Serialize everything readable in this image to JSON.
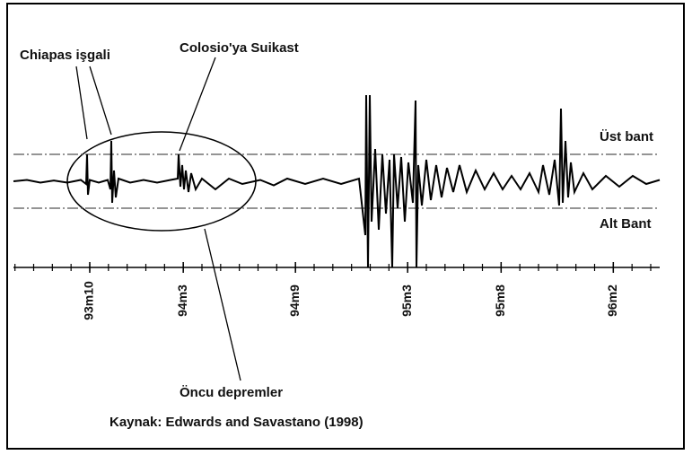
{
  "chart_data": {
    "type": "line",
    "annotations": [
      "Chiapas işgali",
      "Colosio'ya Suikast",
      "Öncu depremler"
    ],
    "source": "Kaynak: Edwards and Savastano (1998)",
    "bands": [
      {
        "label": "Üst bant",
        "value": 1
      },
      {
        "label": "Alt Bant",
        "value": -1
      }
    ],
    "color": "#000000",
    "xlim": [
      93.37,
      96.29
    ],
    "ylim": [
      -3.2,
      3.2
    ],
    "xticks": [
      {
        "value": 93.75,
        "label": "93m10"
      },
      {
        "value": 94.1667,
        "label": "94m3"
      },
      {
        "value": 94.6667,
        "label": "94m9"
      },
      {
        "value": 95.1667,
        "label": "95m3"
      },
      {
        "value": 95.5833,
        "label": "95m8"
      },
      {
        "value": 96.0833,
        "label": "96m2"
      }
    ],
    "xminorticks": [
      93.4167,
      93.5,
      93.5833,
      93.6667,
      93.75,
      93.8333,
      93.9167,
      94,
      94.0833,
      94.1667,
      94.25,
      94.3333,
      94.4167,
      94.5,
      94.5833,
      94.6667,
      94.75,
      94.8333,
      94.9167,
      95,
      95.0833,
      95.1667,
      95.25,
      95.3333,
      95.4167,
      95.5,
      95.5833,
      95.6667,
      95.75,
      95.8333,
      95.9167,
      96,
      96.0833,
      96.1667,
      96.25
    ],
    "x": [
      93.41,
      93.47,
      93.53,
      93.59,
      93.65,
      93.71,
      93.734,
      93.738,
      93.742,
      93.75,
      93.79,
      93.83,
      93.842,
      93.846,
      93.85,
      93.858,
      93.866,
      93.878,
      93.93,
      93.99,
      94.05,
      94.11,
      94.142,
      94.146,
      94.154,
      94.162,
      94.17,
      94.178,
      94.19,
      94.202,
      94.222,
      94.25,
      94.31,
      94.37,
      94.43,
      94.51,
      94.57,
      94.63,
      94.71,
      94.79,
      94.87,
      94.95,
      94.978,
      94.982,
      94.99,
      94.998,
      95.006,
      95.022,
      95.038,
      95.054,
      95.07,
      95.086,
      95.098,
      95.106,
      95.122,
      95.138,
      95.154,
      95.17,
      95.19,
      95.202,
      95.206,
      95.214,
      95.23,
      95.25,
      95.27,
      95.294,
      95.318,
      95.342,
      95.37,
      95.398,
      95.43,
      95.47,
      95.51,
      95.55,
      95.59,
      95.63,
      95.67,
      95.71,
      95.75,
      95.77,
      95.798,
      95.822,
      95.842,
      95.85,
      95.858,
      95.87,
      95.882,
      95.894,
      95.91,
      95.95,
      95.99,
      96.05,
      96.11,
      96.17,
      96.23,
      96.29
    ],
    "values": [
      0,
      0.05,
      -0.05,
      0.03,
      -0.05,
      0.05,
      -0.1,
      1.0,
      -0.5,
      0.05,
      -0.05,
      0.05,
      -0.3,
      1.5,
      -0.8,
      0.4,
      -0.6,
      0.1,
      -0.05,
      0.05,
      -0.05,
      0.05,
      0.1,
      1.0,
      -0.2,
      0.6,
      -0.3,
      0.4,
      -0.4,
      0.3,
      -0.3,
      0.1,
      -0.3,
      0.1,
      -0.1,
      0.05,
      -0.15,
      0.1,
      -0.1,
      0.1,
      -0.1,
      0.1,
      -2.0,
      3.2,
      -3.2,
      3.2,
      -1.5,
      1.2,
      -1.8,
      1.0,
      -1.2,
      0.8,
      -3.2,
      1.0,
      -1.0,
      0.9,
      -1.5,
      0.7,
      -0.8,
      3.0,
      -3.2,
      0.6,
      -0.9,
      0.8,
      -0.7,
      0.6,
      -0.6,
      0.5,
      -0.4,
      0.6,
      -0.4,
      0.4,
      -0.3,
      0.3,
      -0.3,
      0.2,
      -0.3,
      0.3,
      -0.4,
      0.6,
      -0.5,
      0.8,
      -0.9,
      2.7,
      -0.8,
      1.5,
      -0.6,
      0.7,
      -0.4,
      0.3,
      -0.3,
      0.2,
      -0.2,
      0.2,
      -0.1,
      0.05
    ]
  }
}
